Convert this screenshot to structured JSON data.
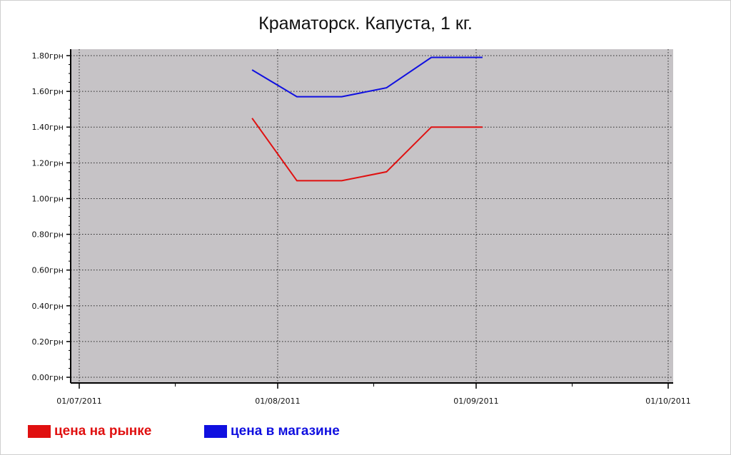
{
  "chart_data": {
    "type": "line",
    "title": "Краматорск. Капуста, 1 кг.",
    "xlabel": "",
    "ylabel": "",
    "x_ticks": [
      "01/07/2011",
      "01/08/2011",
      "01/09/2011",
      "01/10/2011"
    ],
    "y_ticks": [
      "0.00грн",
      "0.20грн",
      "0.40грн",
      "0.60грн",
      "0.80грн",
      "1.00грн",
      "1.20грн",
      "1.40грн",
      "1.60грн",
      "1.80грн"
    ],
    "xlim": [
      "2011-07-01",
      "2011-10-01"
    ],
    "ylim": [
      0,
      1.8
    ],
    "grid": true,
    "plot_background": "#c6c3c6",
    "legend_position": "bottom-left",
    "series": [
      {
        "name": "цена на рынке",
        "color": "#e01010",
        "points": [
          {
            "x": "2011-07-28",
            "y": 1.45
          },
          {
            "x": "2011-08-04",
            "y": 1.1
          },
          {
            "x": "2011-08-11",
            "y": 1.1
          },
          {
            "x": "2011-08-18",
            "y": 1.15
          },
          {
            "x": "2011-08-25",
            "y": 1.4
          },
          {
            "x": "2011-09-02",
            "y": 1.4
          }
        ]
      },
      {
        "name": "цена в магазине",
        "color": "#1010e0",
        "points": [
          {
            "x": "2011-07-28",
            "y": 1.72
          },
          {
            "x": "2011-08-04",
            "y": 1.57
          },
          {
            "x": "2011-08-11",
            "y": 1.57
          },
          {
            "x": "2011-08-18",
            "y": 1.62
          },
          {
            "x": "2011-08-25",
            "y": 1.79
          },
          {
            "x": "2011-09-02",
            "y": 1.79
          }
        ]
      }
    ]
  }
}
